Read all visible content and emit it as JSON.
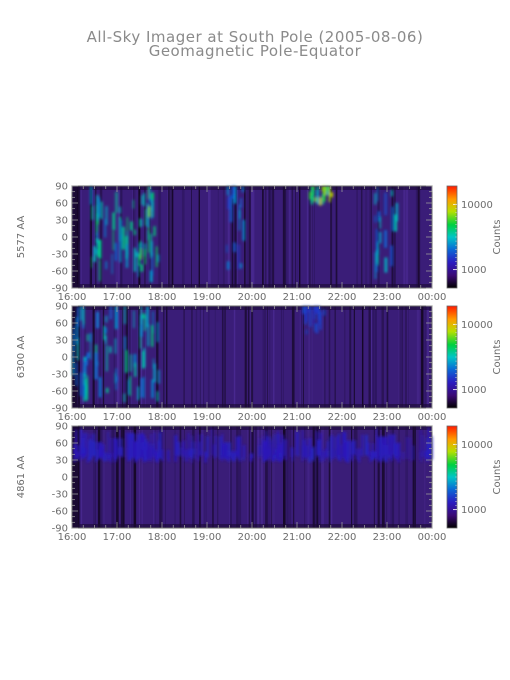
{
  "title": "All-Sky Imager at South Pole (2005-08-06)",
  "subtitle": "Geomagnetic Pole-Equator",
  "chart_data": [
    {
      "type": "heatmap",
      "ylabel": "5577 AA",
      "ylim": [
        -90,
        90
      ],
      "yticks": [
        90,
        60,
        30,
        0,
        -30,
        -60,
        -90
      ],
      "xticks": [
        "16:00",
        "17:00",
        "18:00",
        "19:00",
        "20:00",
        "21:00",
        "22:00",
        "23:00",
        "00:00"
      ],
      "colorbar": {
        "label": "Counts",
        "ticks": [
          "10000",
          "1000"
        ],
        "scale": "log"
      },
      "features": [
        {
          "name": "aurora-arc-1",
          "t_start": 16.4,
          "t_end": 17.8,
          "lat_min": -80,
          "lat_max": 60,
          "intensity": 0.55
        },
        {
          "name": "aurora-arc-2",
          "t_start": 17.5,
          "t_end": 17.9,
          "lat_min": -70,
          "lat_max": 75,
          "intensity": 0.65
        },
        {
          "name": "patch-19-40",
          "t_start": 19.4,
          "t_end": 19.8,
          "lat_min": -60,
          "lat_max": 85,
          "intensity": 0.35
        },
        {
          "name": "hotspot-21-30",
          "t_start": 21.25,
          "t_end": 21.75,
          "lat_min": 55,
          "lat_max": 88,
          "intensity": 0.8
        },
        {
          "name": "streak-23",
          "t_start": 22.7,
          "t_end": 23.2,
          "lat_min": -80,
          "lat_max": 85,
          "intensity": 0.45
        }
      ]
    },
    {
      "type": "heatmap",
      "ylabel": "6300 AA",
      "ylim": [
        -90,
        90
      ],
      "yticks": [
        90,
        60,
        30,
        0,
        -30,
        -60,
        -90
      ],
      "xticks": [
        "16:00",
        "17:00",
        "18:00",
        "19:00",
        "20:00",
        "21:00",
        "22:00",
        "23:00",
        "00:00"
      ],
      "colorbar": {
        "label": "Counts",
        "ticks": [
          "10000",
          "1000"
        ],
        "scale": "log"
      },
      "features": [
        {
          "name": "red-line-region",
          "t_start": 16.0,
          "t_end": 17.9,
          "lat_min": -80,
          "lat_max": 70,
          "intensity": 0.5
        },
        {
          "name": "faint-21-30",
          "t_start": 21.1,
          "t_end": 21.6,
          "lat_min": 40,
          "lat_max": 80,
          "intensity": 0.25
        }
      ]
    },
    {
      "type": "heatmap",
      "ylabel": "4861 AA",
      "ylim": [
        -90,
        90
      ],
      "yticks": [
        90,
        60,
        30,
        0,
        -30,
        -60,
        -90
      ],
      "xticks": [
        "16:00",
        "17:00",
        "18:00",
        "19:00",
        "20:00",
        "21:00",
        "22:00",
        "23:00",
        "00:00"
      ],
      "colorbar": {
        "label": "Counts",
        "ticks": [
          "10000",
          "1000"
        ],
        "scale": "log"
      },
      "features": [
        {
          "name": "hbeta-band",
          "t_start": 16.0,
          "t_end": 24.0,
          "lat_min": 25,
          "lat_max": 40,
          "intensity": 0.15
        }
      ]
    }
  ],
  "colors": {
    "background_field": "#3a1d78",
    "dark_field": "#1a0a33",
    "axis": "#5a5a5a"
  }
}
